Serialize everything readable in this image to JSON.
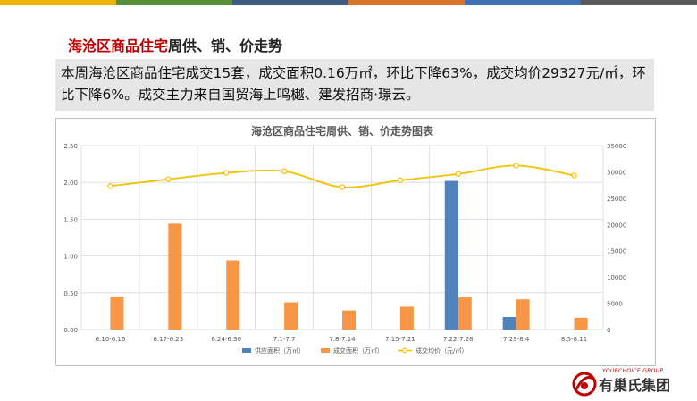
{
  "topbar_colors": [
    "#f0b300",
    "#5a8f3a",
    "#3d5a80",
    "#d9752a",
    "#3f6fb5",
    "#595959"
  ],
  "heading": {
    "highlight": "海沧区商品住宅",
    "rest": "周供、销、价走势"
  },
  "summary": "本周海沧区商品住宅成交15套，成交面积0.16万㎡，环比下降63%，成交均价29327元/㎡，环比下降6%。成交主力来自国贸海上鸣樾、建发招商·璟云。",
  "chart_data": {
    "type": "bar",
    "title": "海沧区商品住宅周供、销、价走势图表",
    "categories": [
      "6.10-6.16",
      "6.17-6.23",
      "6.24-6.30",
      "7.1-7.7",
      "7.8-7.14",
      "7.15-7.21",
      "7.22-7.28",
      "7.29-8.4",
      "8.5-8.11"
    ],
    "y_left": {
      "ylim": [
        0,
        2.5
      ],
      "ticks": [
        "0.00",
        "0.50",
        "1.00",
        "1.50",
        "2.00",
        "2.50"
      ]
    },
    "y_right": {
      "ylim": [
        0,
        35000
      ],
      "ticks": [
        "0",
        "5000",
        "10000",
        "15000",
        "20000",
        "25000",
        "30000",
        "35000"
      ]
    },
    "grid": true,
    "legend_position": "bottom",
    "series": [
      {
        "name": "供应面积（万㎡）",
        "type": "bar",
        "axis": "left",
        "color": "#4f81bd",
        "values": [
          0,
          0,
          0,
          0,
          0,
          0,
          2.02,
          0.17,
          0
        ]
      },
      {
        "name": "成交面积（万㎡）",
        "type": "bar",
        "axis": "left",
        "color": "#f79646",
        "values": [
          0.45,
          1.44,
          0.94,
          0.37,
          0.26,
          0.31,
          0.44,
          0.41,
          0.16
        ]
      },
      {
        "name": "成交均价（元/㎡）",
        "type": "line",
        "axis": "right",
        "color": "#f2c200",
        "values": [
          27300,
          28600,
          29800,
          30100,
          27100,
          28400,
          29600,
          31200,
          29300
        ]
      }
    ]
  },
  "logo": {
    "small": "YOURCHOICE GROUP",
    "main": "有巢氏集团",
    "colors": {
      "red": "#c00000"
    }
  }
}
